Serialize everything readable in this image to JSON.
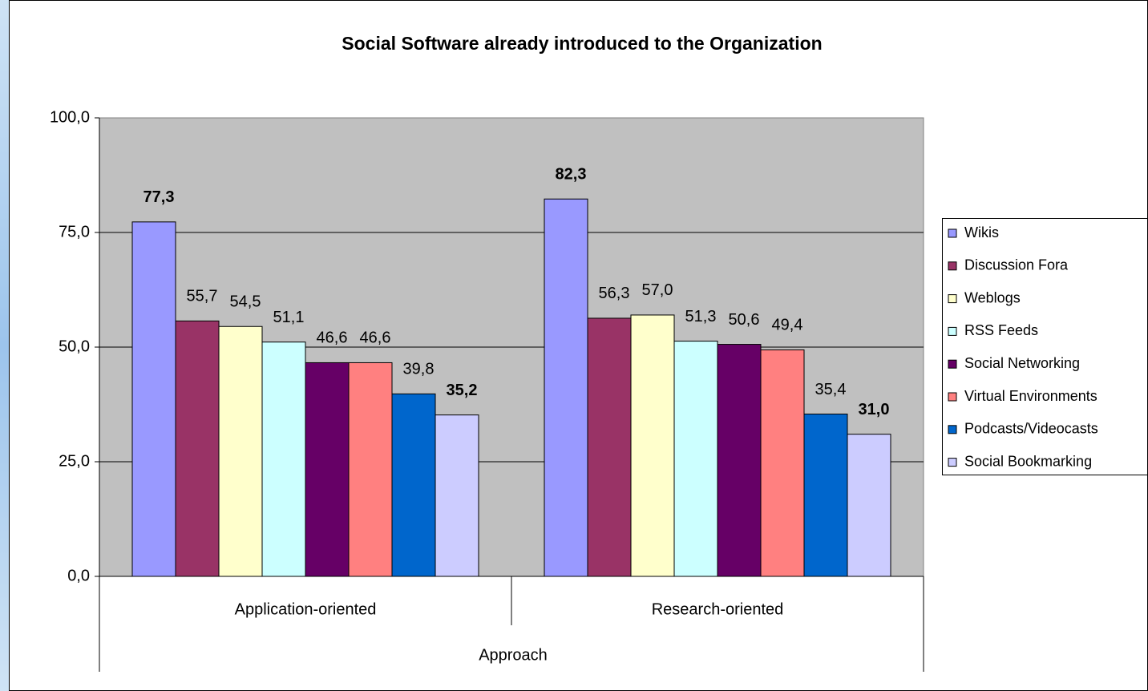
{
  "chart_data": {
    "type": "bar",
    "title": "Social Software already introduced to the Organization",
    "x_label": "Approach",
    "categories": [
      "Application-oriented",
      "Research-oriented"
    ],
    "series": [
      {
        "name": "Wikis",
        "color": "#9999ff",
        "values": [
          77.3,
          82.3
        ],
        "value_labels": [
          "77,3",
          "82,3"
        ]
      },
      {
        "name": "Discussion Fora",
        "color": "#993366",
        "values": [
          55.7,
          56.3
        ],
        "value_labels": [
          "55,7",
          "56,3"
        ]
      },
      {
        "name": "Weblogs",
        "color": "#ffffcc",
        "values": [
          54.5,
          57.0
        ],
        "value_labels": [
          "54,5",
          "57,0"
        ]
      },
      {
        "name": "RSS Feeds",
        "color": "#ccffff",
        "values": [
          51.1,
          51.3
        ],
        "value_labels": [
          "51,1",
          "51,3"
        ]
      },
      {
        "name": "Social Networking",
        "color": "#660066",
        "values": [
          46.6,
          50.6
        ],
        "value_labels": [
          "46,6",
          "50,6"
        ]
      },
      {
        "name": "Virtual Environments",
        "color": "#ff8080",
        "values": [
          46.6,
          49.4
        ],
        "value_labels": [
          "46,6",
          "49,4"
        ]
      },
      {
        "name": "Podcasts/Videocasts",
        "color": "#0066cc",
        "values": [
          39.8,
          35.4
        ],
        "value_labels": [
          "39,8",
          "35,4"
        ]
      },
      {
        "name": "Social Bookmarking",
        "color": "#ccccff",
        "values": [
          35.2,
          31.0
        ],
        "value_labels": [
          "35,2",
          "31,0"
        ]
      }
    ],
    "ylim": [
      0,
      100
    ],
    "yticks": [
      {
        "value": 0,
        "label": "0,0"
      },
      {
        "value": 25,
        "label": "25,0"
      },
      {
        "value": 50,
        "label": "50,0"
      },
      {
        "value": 75,
        "label": "75,0"
      },
      {
        "value": 100,
        "label": "100,0"
      }
    ],
    "grid": true,
    "legend": "right"
  }
}
